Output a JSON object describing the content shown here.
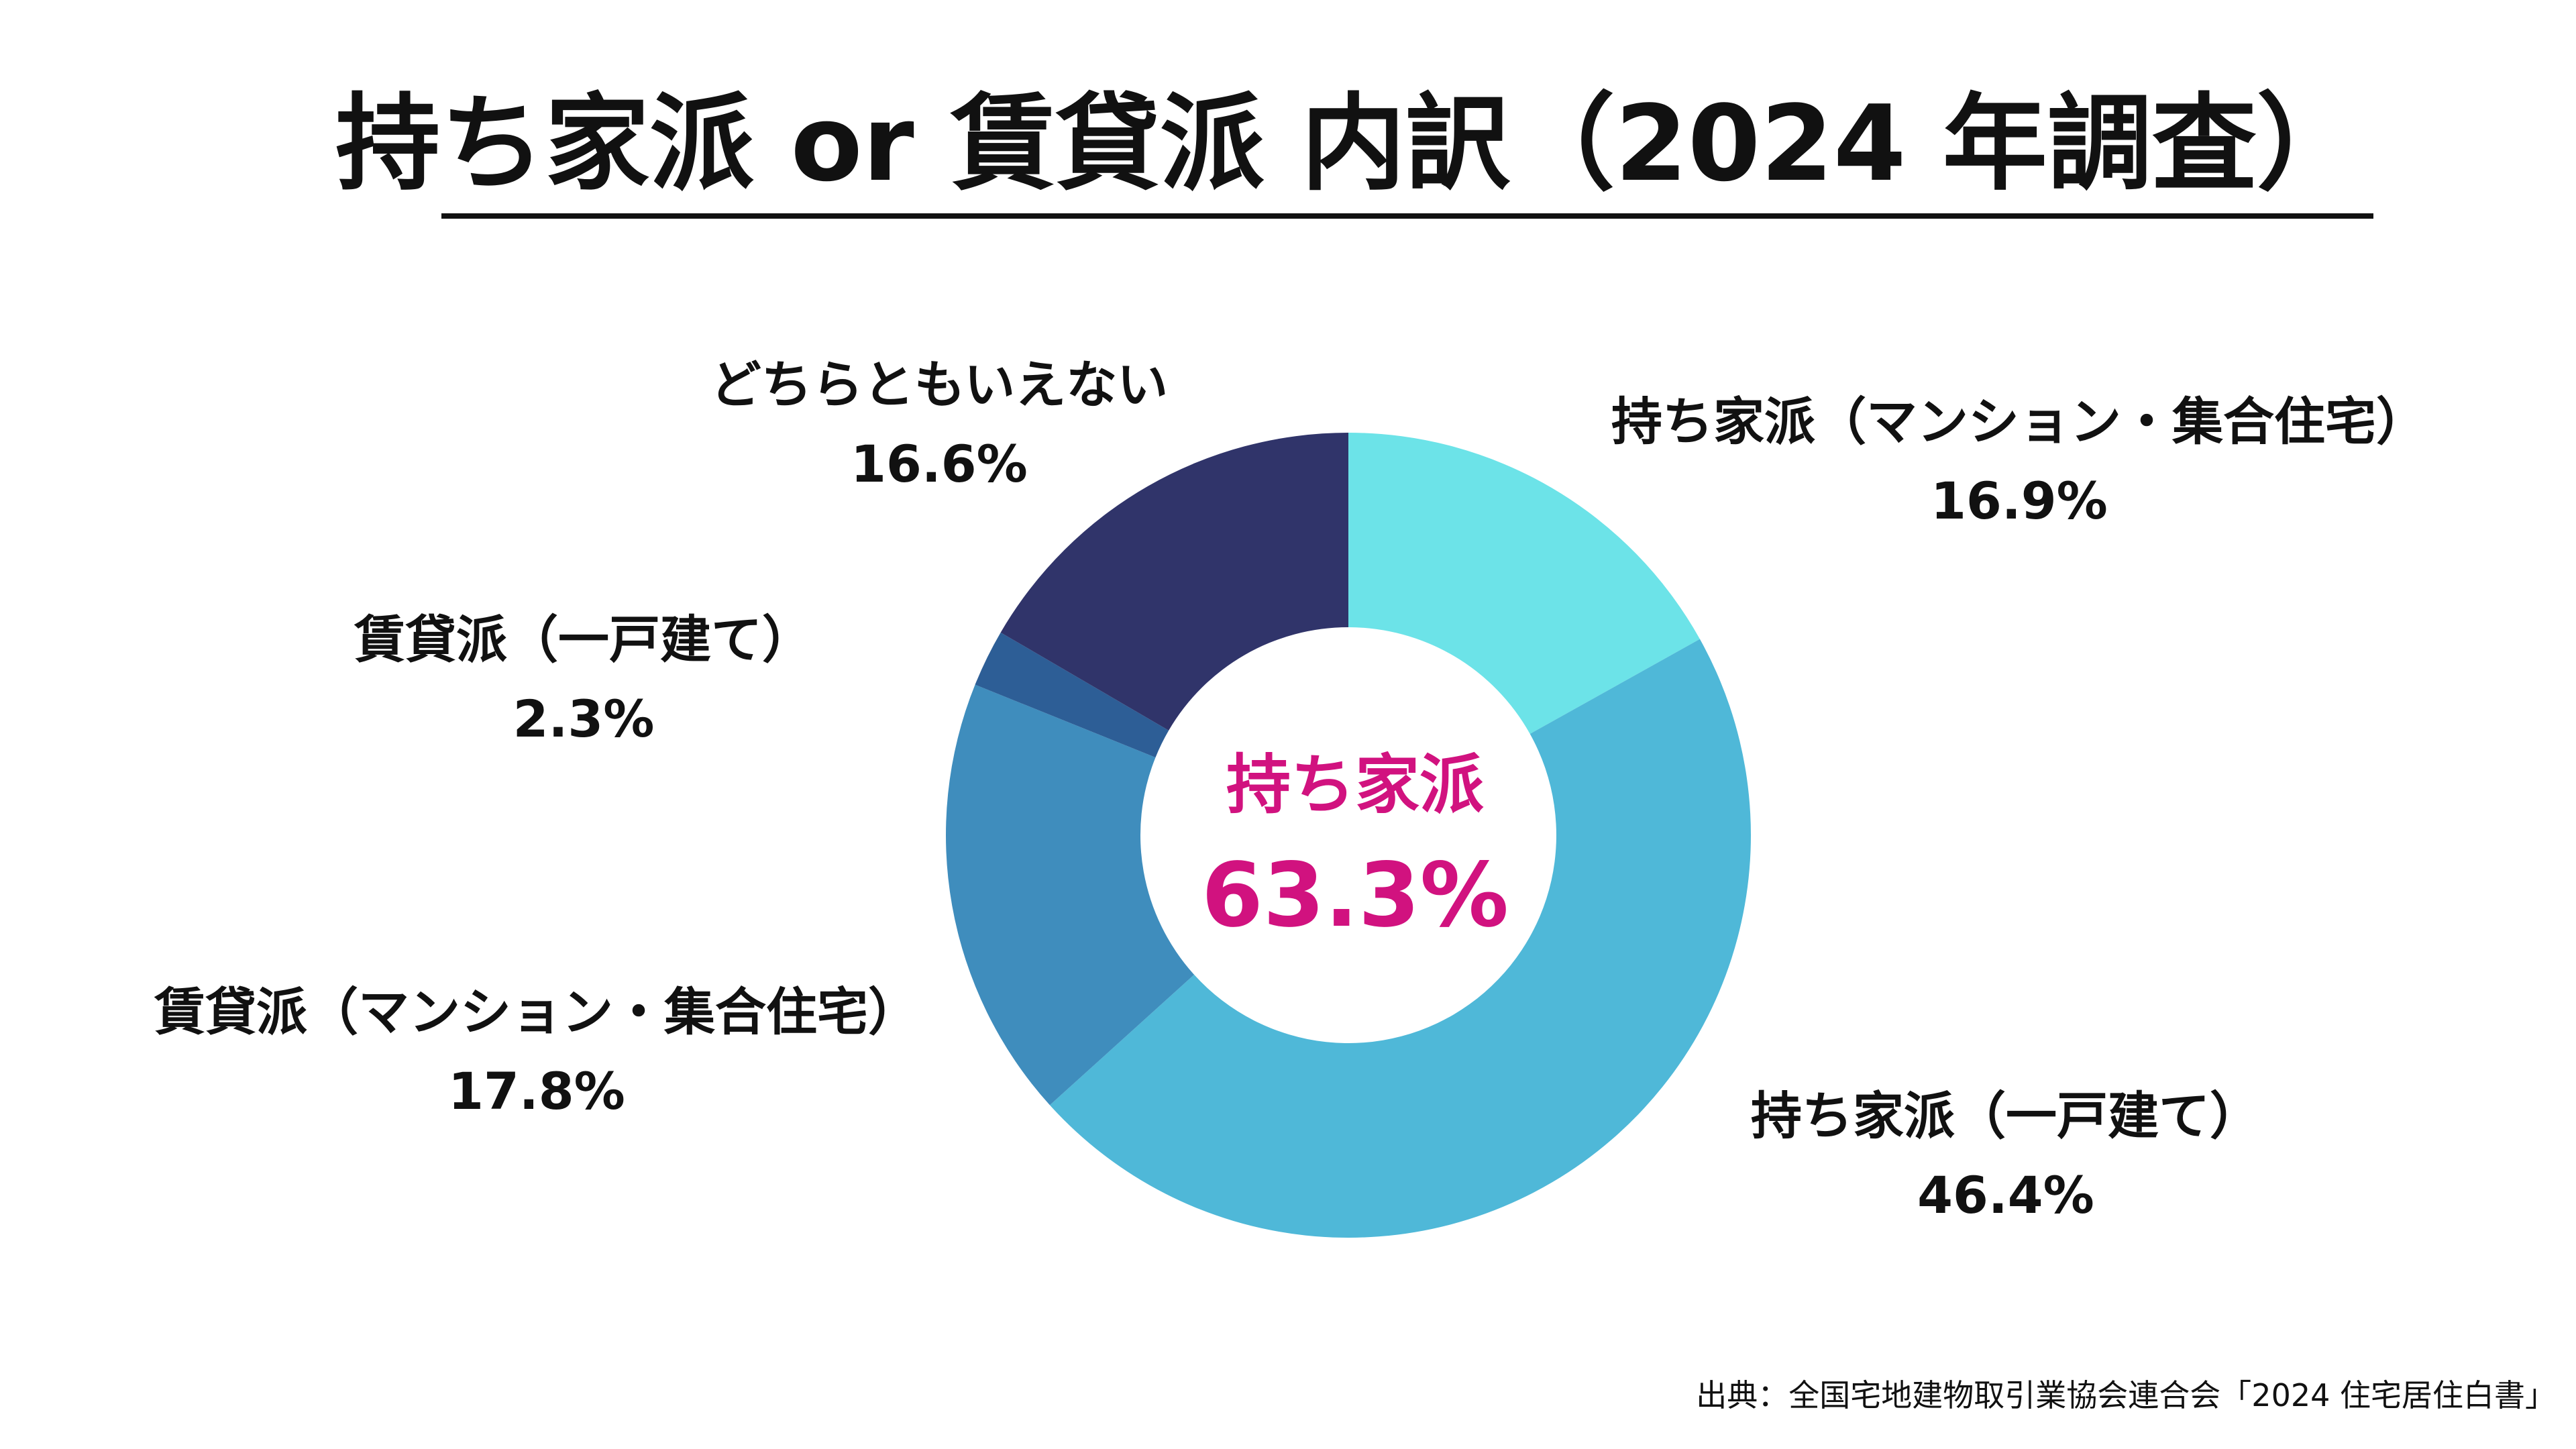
{
  "chart_data": {
    "type": "pie",
    "title": "持ち家派 or 賃貸派 内訳（2024 年調査）",
    "slices": [
      {
        "name": "持ち家派（マンション・集合住宅）",
        "value": 16.9,
        "label": "16.9%",
        "color": "#6ce3e8"
      },
      {
        "name": "持ち家派（一戸建て）",
        "value": 46.4,
        "label": "46.4%",
        "color": "#4fb8d8"
      },
      {
        "name": "賃貸派（マンション・集合住宅）",
        "value": 17.8,
        "label": "17.8%",
        "color": "#3f8dbd"
      },
      {
        "name": "賃貸派（一戸建て）",
        "value": 2.3,
        "label": "2.3%",
        "color": "#2d5e96"
      },
      {
        "name": "どちらともいえない",
        "value": 16.6,
        "label": "16.6%",
        "color": "#30346a"
      }
    ],
    "center": {
      "name": "持ち家派",
      "value": "63.3%",
      "color": "#d1127f"
    },
    "source": "出典：全国宅地建物取引業協会連合会「2024 住宅居住白書」"
  }
}
